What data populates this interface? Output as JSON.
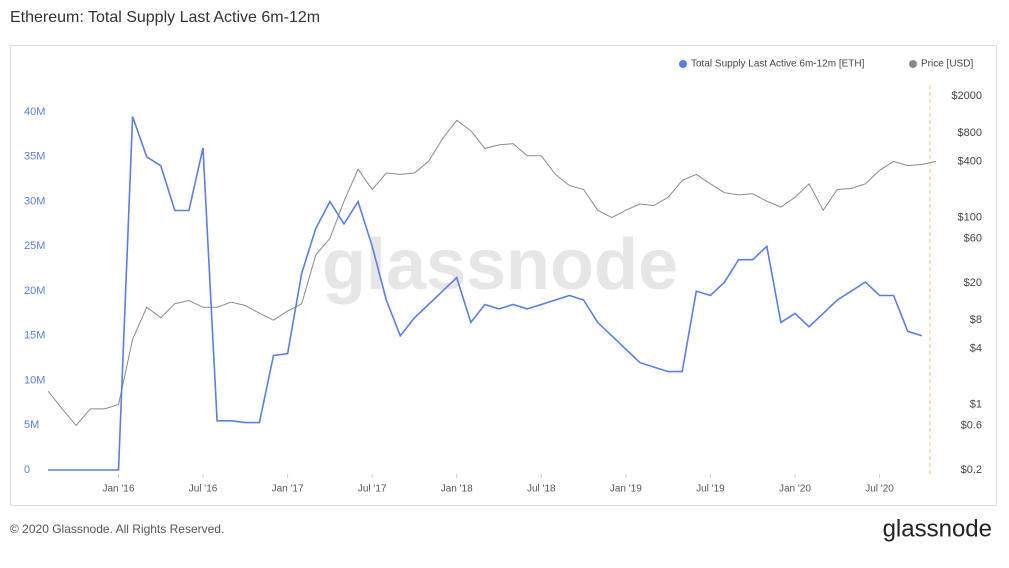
{
  "chart_data": {
    "type": "line",
    "title": "Ethereum: Total Supply Last Active 6m-12m",
    "watermark": "glassnode",
    "footer": "© 2020 Glassnode. All Rights Reserved.",
    "logo": "glassnode",
    "x": [
      "2015-08",
      "2015-09",
      "2015-10",
      "2015-11",
      "2015-12",
      "2016-01",
      "2016-02",
      "2016-03",
      "2016-04",
      "2016-05",
      "2016-06",
      "2016-07",
      "2016-08",
      "2016-09",
      "2016-10",
      "2016-11",
      "2016-12",
      "2017-01",
      "2017-02",
      "2017-03",
      "2017-04",
      "2017-05",
      "2017-06",
      "2017-07",
      "2017-08",
      "2017-09",
      "2017-10",
      "2017-11",
      "2017-12",
      "2018-01",
      "2018-02",
      "2018-03",
      "2018-04",
      "2018-05",
      "2018-06",
      "2018-07",
      "2018-08",
      "2018-09",
      "2018-10",
      "2018-11",
      "2018-12",
      "2019-01",
      "2019-02",
      "2019-03",
      "2019-04",
      "2019-05",
      "2019-06",
      "2019-07",
      "2019-08",
      "2019-09",
      "2019-10",
      "2019-11",
      "2019-12",
      "2020-01",
      "2020-02",
      "2020-03",
      "2020-04",
      "2020-05",
      "2020-06",
      "2020-07",
      "2020-08",
      "2020-09",
      "2020-10",
      "2020-11"
    ],
    "xlim": [
      "2015-08",
      "2020-12"
    ],
    "xticks": [
      {
        "value": "2016-01",
        "label": "Jan '16"
      },
      {
        "value": "2016-07",
        "label": "Jul '16"
      },
      {
        "value": "2017-01",
        "label": "Jan '17"
      },
      {
        "value": "2017-07",
        "label": "Jul '17"
      },
      {
        "value": "2018-01",
        "label": "Jan '18"
      },
      {
        "value": "2018-07",
        "label": "Jul '18"
      },
      {
        "value": "2019-01",
        "label": "Jan '19"
      },
      {
        "value": "2019-07",
        "label": "Jul '19"
      },
      {
        "value": "2020-01",
        "label": "Jan '20"
      },
      {
        "value": "2020-07",
        "label": "Jul '20"
      }
    ],
    "ylim": [
      0,
      41800000
    ],
    "yticks": [
      0,
      {
        "value": 5000000,
        "label": "5M"
      },
      {
        "value": 10000000,
        "label": "10M"
      },
      {
        "value": 15000000,
        "label": "15M"
      },
      {
        "value": 20000000,
        "label": "20M"
      },
      {
        "value": 25000000,
        "label": "25M"
      },
      {
        "value": 30000000,
        "label": "30M"
      },
      {
        "value": 35000000,
        "label": "35M"
      },
      {
        "value": 40000000,
        "label": "40M"
      }
    ],
    "y2lim": [
      0.2,
      2000
    ],
    "y2_scale": "log",
    "y2ticks": [
      {
        "value": 2000,
        "label": "$2000"
      },
      {
        "value": 800,
        "label": "$800"
      },
      {
        "value": 400,
        "label": "$400"
      },
      {
        "value": 100,
        "label": "$100"
      },
      {
        "value": 60,
        "label": "$60"
      },
      {
        "value": 20,
        "label": "$20"
      },
      {
        "value": 8,
        "label": "$8"
      },
      {
        "value": 4,
        "label": "$4"
      },
      {
        "value": 1,
        "label": "$1"
      },
      {
        "value": 0.6,
        "label": "$0.6"
      },
      {
        "value": 0.2,
        "label": "$0.2"
      }
    ],
    "series": [
      {
        "name": "Total Supply Last Active 6m-12m [ETH]",
        "color": "#5b7ee5",
        "axis": "y",
        "values": [
          0,
          0,
          0,
          0,
          0,
          0,
          39500000,
          35000000,
          34000000,
          29000000,
          29000000,
          36000000,
          5500000,
          5500000,
          5300000,
          5300000,
          12800000,
          13000000,
          22000000,
          27000000,
          30000000,
          27500000,
          30000000,
          25000000,
          19000000,
          15000000,
          17000000,
          18500000,
          20000000,
          21500000,
          16500000,
          18500000,
          18000000,
          18500000,
          18000000,
          18500000,
          19000000,
          19500000,
          19000000,
          16500000,
          15000000,
          13500000,
          12000000,
          11500000,
          11000000,
          11000000,
          20000000,
          19500000,
          21000000,
          23500000,
          23500000,
          25000000,
          16500000,
          17500000,
          16000000,
          17500000,
          19000000,
          20000000,
          21000000,
          19500000,
          19500000,
          15500000,
          15000000,
          null
        ]
      },
      {
        "name": "Price [USD]",
        "color": "#8a8a8a",
        "axis": "y2",
        "values": [
          1.4,
          0.9,
          0.6,
          0.9,
          0.9,
          1.0,
          5,
          11,
          8.5,
          12,
          13,
          11,
          11,
          12.5,
          11.5,
          9.5,
          8,
          10,
          12,
          40,
          60,
          150,
          330,
          200,
          300,
          290,
          300,
          400,
          700,
          1100,
          850,
          550,
          600,
          620,
          460,
          460,
          290,
          220,
          200,
          120,
          100,
          120,
          140,
          135,
          165,
          250,
          290,
          230,
          185,
          175,
          180,
          150,
          130,
          165,
          230,
          120,
          200,
          205,
          230,
          320,
          400,
          360,
          370,
          400
        ]
      }
    ]
  }
}
